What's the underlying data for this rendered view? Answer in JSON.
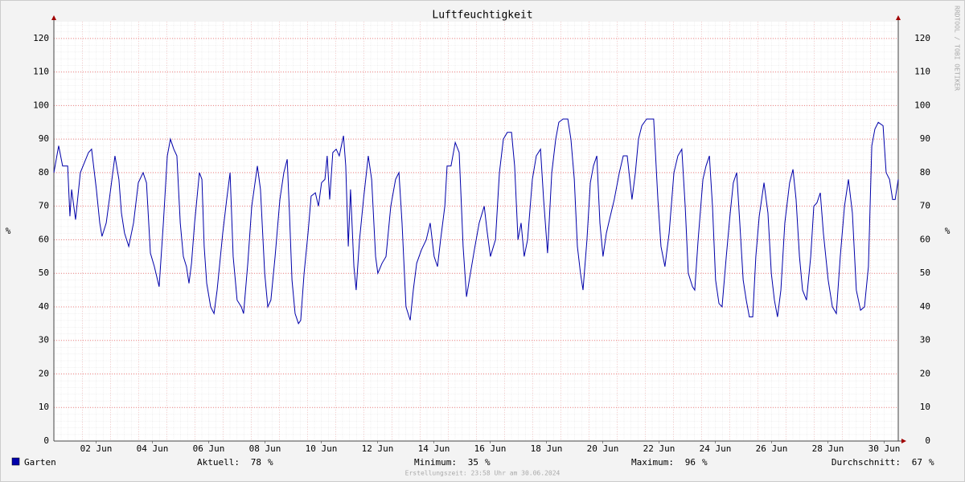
{
  "chart_data": {
    "type": "line",
    "title": "Luftfeuchtigkeit",
    "ylabel": "%",
    "watermark": "RRDTOOL / TOBI OETIKER",
    "footer": "Erstellungszeit: 23:58 Uhr am 30.06.2024",
    "xlim": [
      1,
      31
    ],
    "ylim": [
      0,
      125
    ],
    "yticks": [
      0,
      10,
      20,
      30,
      40,
      50,
      60,
      70,
      80,
      90,
      100,
      110,
      120
    ],
    "xticks": [
      {
        "value": 2.5,
        "label": "02 Jun"
      },
      {
        "value": 4.5,
        "label": "04 Jun"
      },
      {
        "value": 6.5,
        "label": "06 Jun"
      },
      {
        "value": 8.5,
        "label": "08 Jun"
      },
      {
        "value": 10.5,
        "label": "10 Jun"
      },
      {
        "value": 12.5,
        "label": "12 Jun"
      },
      {
        "value": 14.5,
        "label": "14 Jun"
      },
      {
        "value": 16.5,
        "label": "16 Jun"
      },
      {
        "value": 18.5,
        "label": "18 Jun"
      },
      {
        "value": 20.5,
        "label": "20 Jun"
      },
      {
        "value": 22.5,
        "label": "22 Jun"
      },
      {
        "value": 24.5,
        "label": "24 Jun"
      },
      {
        "value": 26.5,
        "label": "26 Jun"
      },
      {
        "value": 28.5,
        "label": "28 Jun"
      },
      {
        "value": 30.5,
        "label": "30 Jun"
      }
    ],
    "grid": true,
    "x": [
      1.0,
      1.17,
      1.31,
      1.49,
      1.57,
      1.63,
      1.77,
      1.94,
      2.23,
      2.34,
      2.51,
      2.63,
      2.71,
      2.86,
      2.97,
      3.17,
      3.31,
      3.4,
      3.51,
      3.66,
      3.83,
      4.0,
      4.17,
      4.29,
      4.43,
      4.57,
      4.74,
      4.89,
      5.03,
      5.14,
      5.26,
      5.37,
      5.49,
      5.6,
      5.71,
      5.8,
      5.89,
      6.0,
      6.17,
      6.26,
      6.34,
      6.43,
      6.57,
      6.69,
      6.8,
      7.0,
      7.14,
      7.26,
      7.37,
      7.51,
      7.66,
      7.74,
      7.89,
      8.03,
      8.23,
      8.34,
      8.49,
      8.6,
      8.71,
      8.86,
      9.03,
      9.17,
      9.29,
      9.37,
      9.46,
      9.57,
      9.69,
      9.77,
      9.89,
      10.03,
      10.14,
      10.29,
      10.4,
      10.51,
      10.63,
      10.71,
      10.8,
      10.91,
      11.03,
      11.14,
      11.29,
      11.37,
      11.46,
      11.54,
      11.66,
      11.74,
      11.86,
      12.0,
      12.17,
      12.29,
      12.43,
      12.51,
      12.66,
      12.8,
      12.97,
      13.14,
      13.26,
      13.37,
      13.51,
      13.66,
      13.77,
      13.89,
      14.06,
      14.23,
      14.37,
      14.51,
      14.63,
      14.74,
      14.89,
      14.97,
      15.11,
      15.26,
      15.4,
      15.54,
      15.66,
      15.8,
      15.94,
      16.11,
      16.29,
      16.4,
      16.51,
      16.69,
      16.83,
      16.97,
      17.11,
      17.26,
      17.37,
      17.49,
      17.6,
      17.71,
      17.83,
      18.0,
      18.14,
      18.29,
      18.4,
      18.54,
      18.69,
      18.83,
      18.94,
      19.09,
      19.26,
      19.37,
      19.49,
      19.6,
      19.71,
      19.8,
      19.94,
      20.06,
      20.17,
      20.29,
      20.4,
      20.51,
      20.63,
      20.74,
      20.91,
      21.09,
      21.23,
      21.37,
      21.54,
      21.66,
      21.77,
      21.89,
      22.06,
      22.31,
      22.46,
      22.57,
      22.71,
      22.86,
      23.03,
      23.17,
      23.31,
      23.43,
      23.54,
      23.69,
      23.77,
      23.89,
      24.06,
      24.17,
      24.29,
      24.4,
      24.51,
      24.63,
      24.74,
      24.89,
      25.03,
      25.14,
      25.26,
      25.37,
      25.49,
      25.6,
      25.71,
      25.83,
      25.94,
      26.06,
      26.23,
      26.37,
      26.49,
      26.6,
      26.71,
      26.83,
      26.97,
      27.14,
      27.26,
      27.37,
      27.49,
      27.6,
      27.74,
      27.89,
      28.0,
      28.11,
      28.23,
      28.34,
      28.51,
      28.66,
      28.8,
      28.94,
      29.09,
      29.23,
      29.37,
      29.51,
      29.66,
      29.8,
      29.94,
      30.06,
      30.17,
      30.29,
      30.46,
      30.57,
      30.69,
      30.8,
      30.89,
      31.0
    ],
    "series": [
      {
        "name": "Garten",
        "color": "#0000aa",
        "values": [
          80,
          88,
          82,
          82,
          67,
          75,
          66,
          80,
          86,
          87,
          75,
          65,
          61,
          65,
          72,
          85,
          78,
          68,
          62,
          58,
          65,
          77,
          80,
          77,
          56,
          52,
          46,
          65,
          85,
          90,
          87,
          85,
          65,
          55,
          52,
          47,
          53,
          65,
          80,
          78,
          58,
          47,
          40,
          38,
          45,
          62,
          72,
          80,
          55,
          42,
          40,
          38,
          53,
          70,
          82,
          75,
          50,
          40,
          42,
          55,
          72,
          80,
          84,
          68,
          48,
          38,
          35,
          36,
          50,
          62,
          73,
          74,
          70,
          77,
          78,
          85,
          72,
          86,
          87,
          85,
          91,
          82,
          58,
          75,
          52,
          45,
          60,
          72,
          85,
          78,
          55,
          50,
          53,
          55,
          70,
          78,
          80,
          65,
          40,
          36,
          45,
          53,
          57,
          60,
          65,
          55,
          52,
          60,
          70,
          82,
          82,
          89,
          86,
          58,
          43,
          50,
          57,
          65,
          70,
          62,
          55,
          60,
          80,
          90,
          92,
          92,
          82,
          60,
          65,
          55,
          60,
          78,
          85,
          87,
          72,
          56,
          80,
          90,
          95,
          96,
          96,
          90,
          78,
          58,
          50,
          45,
          60,
          77,
          82,
          85,
          65,
          55,
          62,
          66,
          72,
          80,
          85,
          85,
          72,
          80,
          90,
          94,
          96,
          96,
          72,
          58,
          52,
          62,
          80,
          85,
          87,
          70,
          50,
          46,
          45,
          60,
          78,
          82,
          85,
          70,
          48,
          41,
          40,
          55,
          68,
          77,
          80,
          65,
          48,
          42,
          37,
          37,
          55,
          67,
          77,
          68,
          50,
          42,
          37,
          45,
          65,
          77,
          81,
          72,
          55,
          45,
          42,
          55,
          70,
          71,
          74,
          62,
          48,
          40,
          38,
          55,
          70,
          78,
          68,
          45,
          39,
          40,
          52,
          88,
          93,
          95,
          94,
          80,
          78,
          72,
          72,
          78
        ]
      }
    ],
    "stats": [
      {
        "label": "Aktuell:",
        "value": 78,
        "unit": "%"
      },
      {
        "label": "Minimum:",
        "value": 35,
        "unit": "%"
      },
      {
        "label": "Maximum:",
        "value": 96,
        "unit": "%"
      },
      {
        "label": "Durchschnitt:",
        "value": 67,
        "unit": "%"
      }
    ]
  }
}
